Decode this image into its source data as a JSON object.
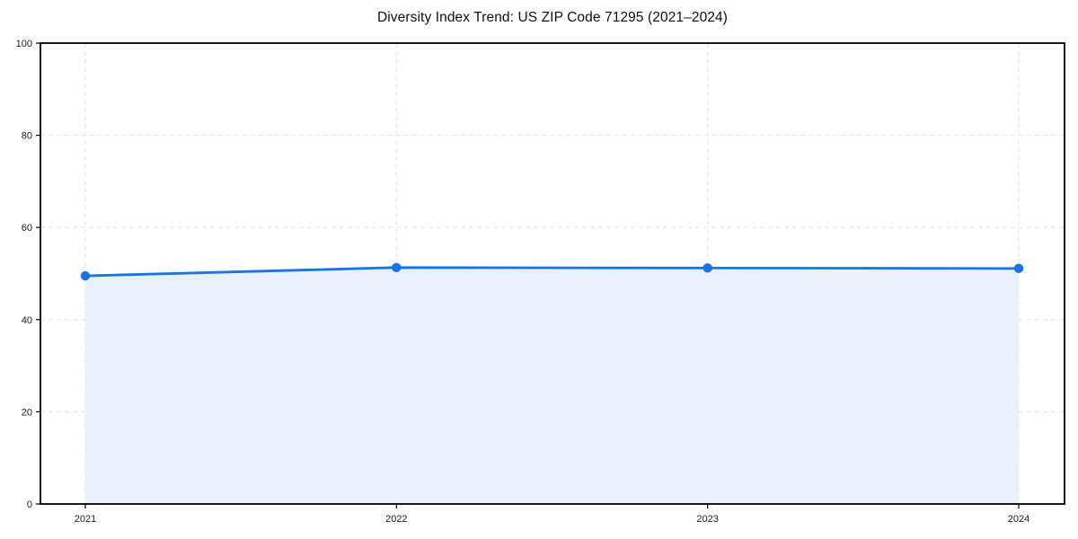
{
  "chart_data": {
    "type": "area",
    "title": "Diversity Index Trend: US ZIP Code 71295 (2021–2024)",
    "x": [
      "2021",
      "2022",
      "2023",
      "2024"
    ],
    "series": [
      {
        "name": "Diversity Index",
        "values": [
          49.5,
          51.3,
          51.2,
          51.1
        ]
      }
    ],
    "xlabel": "",
    "ylabel": "",
    "ylim": [
      0,
      100
    ],
    "yticks": [
      0,
      20,
      40,
      60,
      80,
      100
    ],
    "grid": true,
    "grid_style": "dashed",
    "legend": "none",
    "marker": "circle",
    "colors": {
      "line": "#1a73e8",
      "marker": "#1a73e8",
      "fill": "#e8f0fc",
      "grid": "#e3e3e3",
      "axis": "#000000",
      "tick_label": "#222222",
      "title": "#111111"
    }
  }
}
